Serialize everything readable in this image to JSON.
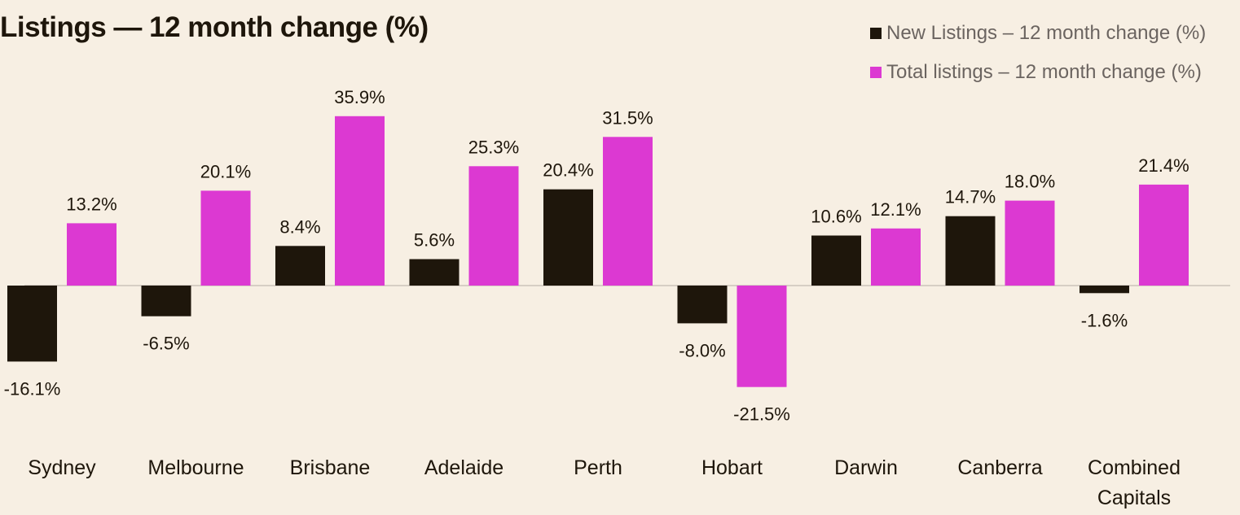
{
  "chart_data": {
    "type": "bar",
    "title": "Listings — 12 month change (%)",
    "categories": [
      "Sydney",
      "Melbourne",
      "Brisbane",
      "Adelaide",
      "Perth",
      "Hobart",
      "Darwin",
      "Canberra",
      "Combined Capitals"
    ],
    "series": [
      {
        "name": "New Listings – 12 month change (%)",
        "color": "#1e160b",
        "values": [
          -16.1,
          -6.5,
          8.4,
          5.6,
          20.4,
          -8.0,
          10.6,
          14.7,
          -1.6
        ]
      },
      {
        "name": "Total listings – 12 month change (%)",
        "color": "#dc39d2",
        "values": [
          13.2,
          20.1,
          35.9,
          25.3,
          31.5,
          -21.5,
          12.1,
          18.0,
          21.4
        ]
      }
    ],
    "value_suffix": "%",
    "xlabel": "",
    "ylabel": "",
    "ylim": [
      -22,
      36
    ],
    "grid": false,
    "legend_position": "top-right",
    "zero_line_color": "#d6cec4"
  }
}
